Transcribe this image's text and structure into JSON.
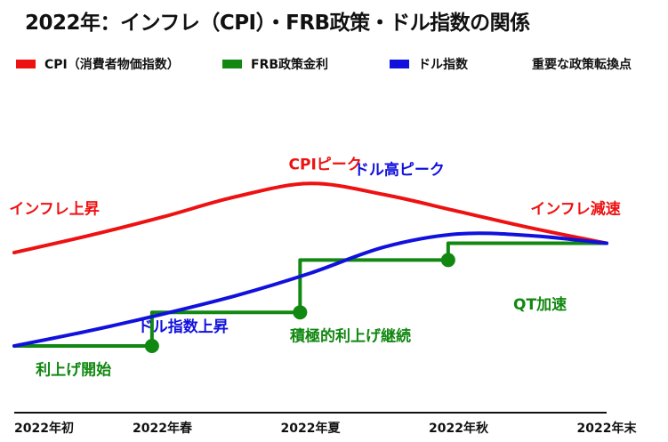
{
  "title": "2022年：インフレ（CPI）・FRB政策・ドル指数の関係",
  "legend": [
    {
      "label": "CPI（消費者物価指数）",
      "color": "#ee1111"
    },
    {
      "label": "FRB政策金利",
      "color": "#118811"
    },
    {
      "label": "ドル指数",
      "color": "#1111dd"
    },
    {
      "label": "重要な政策転換点",
      "color": ""
    }
  ],
  "chart_data": {
    "type": "line",
    "title": "2022年：インフレ（CPI）・FRB政策・ドル指数の関係",
    "categories": [
      "2022年初",
      "2022年春",
      "2022年夏",
      "2022年秋",
      "2022年末"
    ],
    "x": [
      0,
      1,
      2,
      3,
      4
    ],
    "ylim": [
      0,
      100
    ],
    "grid": false,
    "legend_position": "top",
    "series": [
      {
        "name": "CPI（消費者物価指数）",
        "color": "#ee1111",
        "style": "smooth",
        "values": [
          [
            0,
            60
          ],
          [
            0.5,
            69
          ],
          [
            1,
            79
          ],
          [
            1.5,
            90
          ],
          [
            2,
            97
          ],
          [
            2.5,
            91
          ],
          [
            3,
            82
          ],
          [
            3.5,
            73
          ],
          [
            4,
            65
          ]
        ]
      },
      {
        "name": "FRB政策金利",
        "color": "#118811",
        "style": "step",
        "values": [
          [
            0,
            10
          ],
          [
            0.93,
            10
          ],
          [
            0.93,
            28
          ],
          [
            1.93,
            28
          ],
          [
            1.93,
            56
          ],
          [
            2.93,
            56
          ],
          [
            2.93,
            65
          ],
          [
            4,
            65
          ]
        ]
      },
      {
        "name": "ドル指数",
        "color": "#1111dd",
        "style": "smooth",
        "values": [
          [
            0,
            10
          ],
          [
            0.5,
            18
          ],
          [
            1,
            27
          ],
          [
            1.5,
            37
          ],
          [
            2,
            49
          ],
          [
            2.5,
            63
          ],
          [
            3,
            70
          ],
          [
            3.5,
            69
          ],
          [
            4,
            65
          ]
        ]
      }
    ],
    "turning_points": [
      [
        0.93,
        10
      ],
      [
        1.93,
        28
      ],
      [
        2.93,
        56
      ]
    ],
    "annotations": [
      {
        "text": "インフレ上昇",
        "color": "#ee1111",
        "x": 0.27,
        "y": 83
      },
      {
        "text": "CPIピーク",
        "color": "#ee1111",
        "x": 2.1,
        "y": 107
      },
      {
        "text": "ドル高ピーク",
        "color": "#1111dd",
        "x": 2.6,
        "y": 104
      },
      {
        "text": "インフレ減速",
        "color": "#ee1111",
        "x": 3.79,
        "y": 83
      },
      {
        "text": "ドル指数上昇",
        "color": "#1111dd",
        "x": 1.14,
        "y": 20
      },
      {
        "text": "積極的利上げ継続",
        "color": "#118811",
        "x": 2.27,
        "y": 15
      },
      {
        "text": "QT加速",
        "color": "#118811",
        "x": 3.55,
        "y": 32
      },
      {
        "text": "利上げ開始",
        "color": "#118811",
        "x": 0.4,
        "y": -3
      }
    ]
  }
}
